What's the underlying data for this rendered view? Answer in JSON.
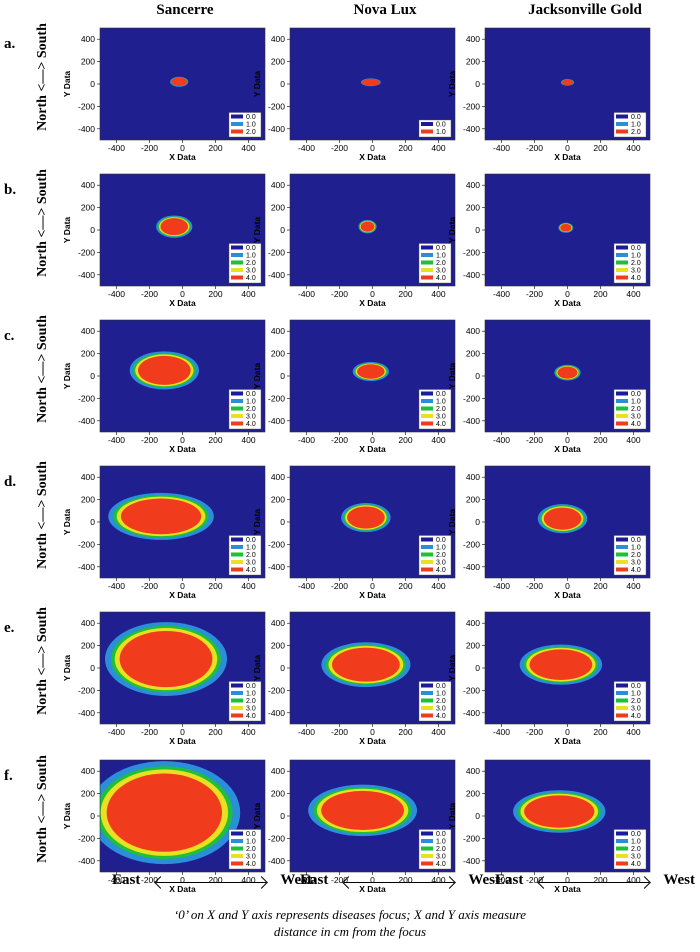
{
  "columns": [
    "Sancerre",
    "Nova Lux",
    "Jacksonville Gold"
  ],
  "rows": [
    "a.",
    "b.",
    "c.",
    "d.",
    "e.",
    "f."
  ],
  "side_label": "North <—> South",
  "direction": {
    "east": "East",
    "west": "West"
  },
  "caption_line1": "‘0’ on X and Y axis represents diseases focus; X and Y axis measure",
  "caption_line2": "distance in cm from the focus",
  "colors": {
    "background": "#1f1f8f",
    "0.0": "#1a1a9a",
    "1.0": "#2a8fd8",
    "2.0": "#1fbf3a",
    "3.0": "#e8e020",
    "4.0": "#f03c1c"
  },
  "chart_data": {
    "type": "heatmap",
    "xlabel": "X Data",
    "ylabel": "Y Data",
    "xlim": [
      -500,
      500
    ],
    "ylim": [
      -500,
      500
    ],
    "xticks": [
      "-400",
      "-200",
      "0",
      "200",
      "400"
    ],
    "yticks": [
      "400",
      "200",
      "0",
      "-200",
      "-400"
    ],
    "legend_levels": {
      "a": [
        "0.0",
        "1.0",
        "2.0"
      ],
      "a_nova": [
        "0.0",
        "1.0"
      ],
      "other": [
        "0.0",
        "1.0",
        "2.0",
        "3.0",
        "4.0"
      ]
    },
    "patches": [
      [
        {
          "cx": -20,
          "cy": 20,
          "rx": 55,
          "ry": 45
        },
        {
          "cx": -10,
          "cy": 15,
          "rx": 60,
          "ry": 35
        },
        {
          "cx": 0,
          "cy": 15,
          "rx": 40,
          "ry": 30
        }
      ],
      [
        {
          "cx": -50,
          "cy": 30,
          "rx": 110,
          "ry": 100
        },
        {
          "cx": -30,
          "cy": 30,
          "rx": 55,
          "ry": 60
        },
        {
          "cx": -10,
          "cy": 20,
          "rx": 45,
          "ry": 45
        }
      ],
      [
        {
          "cx": -110,
          "cy": 50,
          "rx": 210,
          "ry": 170
        },
        {
          "cx": -10,
          "cy": 40,
          "rx": 110,
          "ry": 85
        },
        {
          "cx": 0,
          "cy": 30,
          "rx": 80,
          "ry": 70
        }
      ],
      [
        {
          "cx": -130,
          "cy": 50,
          "rx": 320,
          "ry": 210
        },
        {
          "cx": -40,
          "cy": 40,
          "rx": 150,
          "ry": 130
        },
        {
          "cx": -30,
          "cy": 30,
          "rx": 150,
          "ry": 130
        }
      ],
      [
        {
          "cx": -100,
          "cy": 80,
          "rx": 370,
          "ry": 330
        },
        {
          "cx": -40,
          "cy": 30,
          "rx": 270,
          "ry": 200
        },
        {
          "cx": -40,
          "cy": 30,
          "rx": 250,
          "ry": 180
        }
      ],
      [
        {
          "cx": -110,
          "cy": 30,
          "rx": 460,
          "ry": 460
        },
        {
          "cx": -60,
          "cy": 50,
          "rx": 330,
          "ry": 230
        },
        {
          "cx": -50,
          "cy": 40,
          "rx": 280,
          "ry": 190
        }
      ]
    ]
  }
}
